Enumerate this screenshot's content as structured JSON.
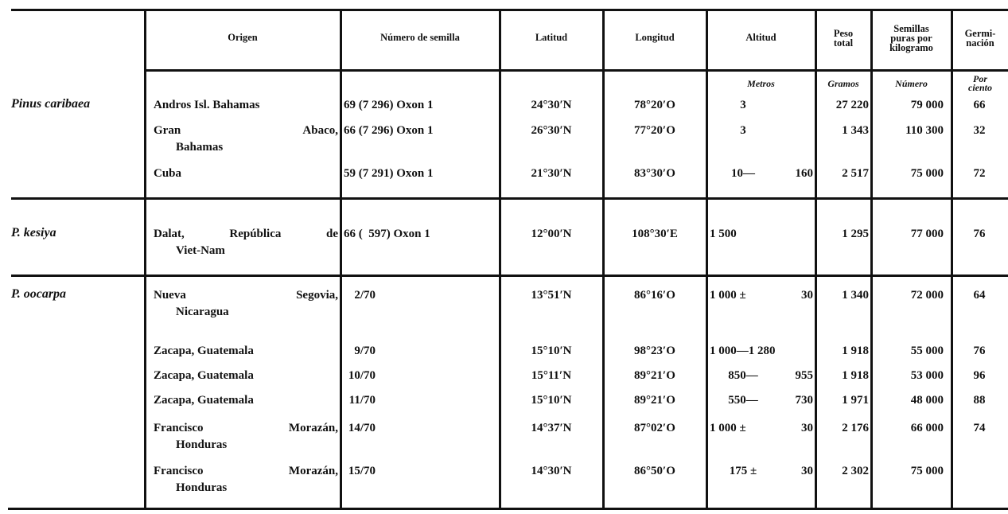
{
  "headers": {
    "origin": "Origen",
    "seed_number": "Número de semilla",
    "latitude": "Latitud",
    "longitude": "Longitud",
    "altitude": "Altitud",
    "total_weight": [
      "Peso",
      "total"
    ],
    "seeds_per_kg": [
      "Semillas",
      "puras por",
      "kilogramo"
    ],
    "germination": [
      "Germi-",
      "nación"
    ]
  },
  "units": {
    "altitude": "Metros",
    "total_weight": "Gramos",
    "seeds_per_kg": "Número",
    "germination": [
      "Por",
      "ciento"
    ]
  },
  "groups": [
    {
      "species": "Pinus caribaea",
      "rows": [
        {
          "origin": [
            "Andros Isl. Bahamas"
          ],
          "seed": "69 (7 296) Oxon 1",
          "lat": "24°30′N",
          "lon": "78°20′O",
          "alt": [
            "3",
            ""
          ],
          "weight": "27 220",
          "seeds": "79 000",
          "germ": "66"
        },
        {
          "origin": [
            "Gran Abaco,",
            "Bahamas"
          ],
          "seed": "66 (7 296) Oxon 1",
          "lat": "26°30′N",
          "lon": "77°20′O",
          "alt": [
            "3",
            ""
          ],
          "weight": "1 343",
          "seeds": "110 300",
          "germ": "32"
        },
        {
          "origin": [
            "Cuba"
          ],
          "seed": "59 (7 291) Oxon 1",
          "lat": "21°30′N",
          "lon": "83°30′O",
          "alt": [
            "10—",
            "160"
          ],
          "weight": "2 517",
          "seeds": "75 000",
          "germ": "72"
        }
      ]
    },
    {
      "species": "P. kesiya",
      "rows": [
        {
          "origin": [
            "Dalat, República de",
            "Viet-Nam"
          ],
          "seed": "66 (  597) Oxon 1",
          "lat": "12°00′N",
          "lon": "108°30′E",
          "alt": [
            "1 500",
            ""
          ],
          "weight": "1 295",
          "seeds": "77 000",
          "germ": "76"
        }
      ]
    },
    {
      "species": "P. oocarpa",
      "rows": [
        {
          "origin": [
            "Nueva Segovia,",
            "Nicaragua"
          ],
          "seed": "2/70",
          "lat": "13°51′N",
          "lon": "86°16′O",
          "alt": [
            "1 000 ±",
            "30"
          ],
          "weight": "1 340",
          "seeds": "72 000",
          "germ": "64"
        },
        {
          "origin": [
            "Zacapa, Guatemala"
          ],
          "seed": "9/70",
          "lat": "15°10′N",
          "lon": "98°23′O",
          "alt": [
            "1 000—1 280",
            ""
          ],
          "weight": "1 918",
          "seeds": "55 000",
          "germ": "76"
        },
        {
          "origin": [
            "Zacapa, Guatemala"
          ],
          "seed": "10/70",
          "lat": "15°11′N",
          "lon": "89°21′O",
          "alt": [
            "850—",
            "955"
          ],
          "weight": "1 918",
          "seeds": "53 000",
          "germ": "96"
        },
        {
          "origin": [
            "Zacapa, Guatemala"
          ],
          "seed": "11/70",
          "lat": "15°10′N",
          "lon": "89°21′O",
          "alt": [
            "550—",
            "730"
          ],
          "weight": "1 971",
          "seeds": "48 000",
          "germ": "88"
        },
        {
          "origin": [
            "Francisco Morazán,",
            "Honduras"
          ],
          "seed": "14/70",
          "lat": "14°37′N",
          "lon": "87°02′O",
          "alt": [
            "1 000 ±",
            "30"
          ],
          "weight": "2 176",
          "seeds": "66 000",
          "germ": "74"
        },
        {
          "origin": [
            "Francisco Morazán,",
            "Honduras"
          ],
          "seed": "15/70",
          "lat": "14°30′N",
          "lon": "86°50′O",
          "alt": [
            "175 ±",
            "30"
          ],
          "weight": "2 302",
          "seeds": "75 000",
          "germ": ""
        }
      ]
    }
  ]
}
